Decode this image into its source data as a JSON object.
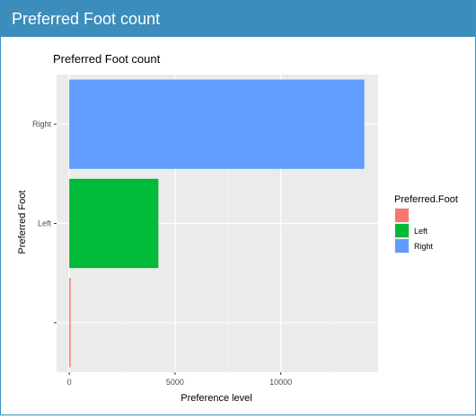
{
  "panel": {
    "title": "Preferred Foot count"
  },
  "chart_data": {
    "type": "bar",
    "orientation": "horizontal",
    "title": "Preferred Foot count",
    "xlabel": "Preference level",
    "ylabel": "Preferred Foot",
    "categories": [
      "",
      "Left",
      "Right"
    ],
    "values": [
      48,
      4211,
      13948
    ],
    "xlim": [
      -600,
      14600
    ],
    "x_ticks": [
      0,
      5000,
      10000
    ],
    "x_tick_labels": [
      "0",
      "5000",
      "10000"
    ],
    "grid": true,
    "legend": {
      "title": "Preferred.Foot",
      "position": "right",
      "entries": [
        {
          "label": "",
          "color": "#F8766D"
        },
        {
          "label": "Left",
          "color": "#00BA38"
        },
        {
          "label": "Right",
          "color": "#619CFF"
        }
      ]
    },
    "colors": [
      "#F8766D",
      "#00BA38",
      "#619CFF"
    ],
    "panel_background": "#EBEBEB"
  }
}
